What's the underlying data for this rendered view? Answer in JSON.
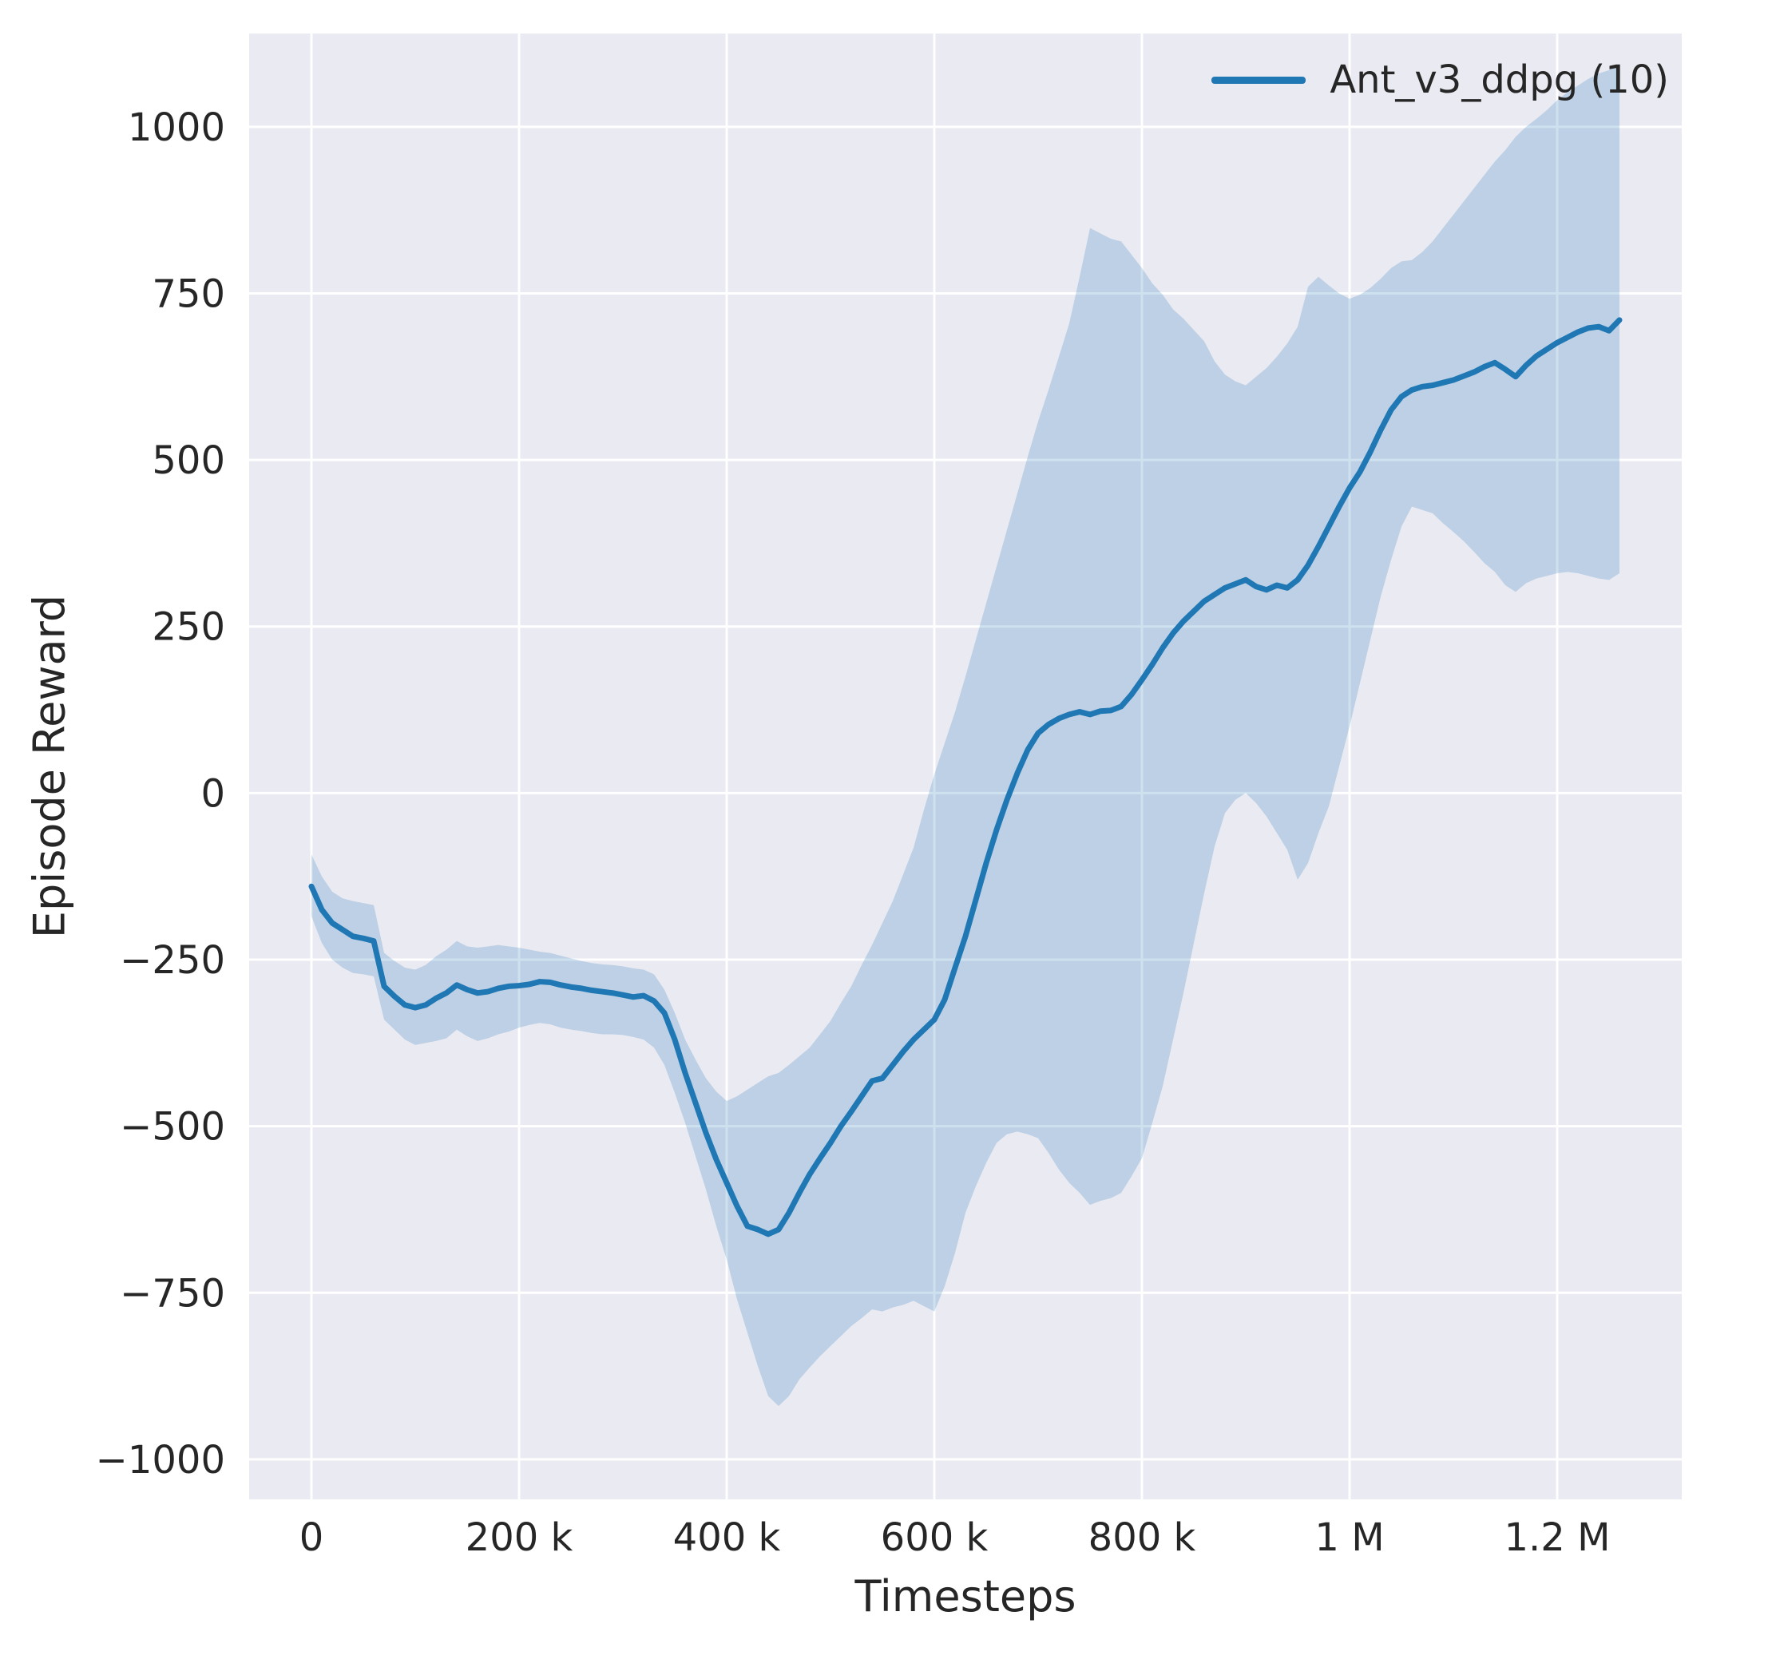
{
  "chart_data": {
    "type": "line",
    "title": "",
    "xlabel": "Timesteps",
    "ylabel": "Episode Reward",
    "legend": [
      {
        "label": "Ant_v3_ddpg (10)",
        "color": "#1f77b4"
      }
    ],
    "legend_position": "upper right",
    "grid": true,
    "xlim": [
      -60000,
      1320000
    ],
    "ylim": [
      -1060,
      1140
    ],
    "xticks": {
      "values": [
        0,
        200000,
        400000,
        600000,
        800000,
        1000000,
        1200000
      ],
      "labels": [
        "0",
        "200 k",
        "400 k",
        "600 k",
        "800 k",
        "1 M",
        "1.2 M"
      ]
    },
    "yticks": {
      "values": [
        -1000,
        -750,
        -500,
        -250,
        0,
        250,
        500,
        750,
        1000
      ],
      "labels": [
        "−1000",
        "−750",
        "−500",
        "−250",
        "0",
        "250",
        "500",
        "750",
        "1000"
      ]
    },
    "colors": {
      "line": "#1f77b4",
      "band": "rgba(31,119,180,0.22)",
      "axes_bg": "#eaeaf2",
      "grid": "#ffffff",
      "text": "#262626"
    },
    "series": [
      {
        "name": "Ant_v3_ddpg (10)",
        "x_step": 10000,
        "mean": [
          -140,
          -175,
          -195,
          -205,
          -215,
          -218,
          -222,
          -290,
          -305,
          -318,
          -322,
          -318,
          -308,
          -300,
          -288,
          -295,
          -300,
          -298,
          -293,
          -290,
          -289,
          -287,
          -283,
          -284,
          -288,
          -291,
          -293,
          -296,
          -298,
          -300,
          -303,
          -306,
          -304,
          -312,
          -330,
          -370,
          -420,
          -465,
          -510,
          -550,
          -585,
          -620,
          -650,
          -655,
          -662,
          -655,
          -630,
          -600,
          -572,
          -548,
          -525,
          -500,
          -478,
          -455,
          -432,
          -428,
          -408,
          -388,
          -370,
          -355,
          -340,
          -310,
          -262,
          -215,
          -160,
          -105,
          -55,
          -10,
          30,
          65,
          90,
          103,
          112,
          118,
          122,
          118,
          123,
          124,
          130,
          148,
          170,
          193,
          218,
          240,
          258,
          273,
          288,
          298,
          308,
          314,
          320,
          310,
          305,
          312,
          308,
          320,
          342,
          370,
          400,
          430,
          458,
          482,
          512,
          545,
          575,
          595,
          605,
          610,
          612,
          616,
          620,
          626,
          632,
          640,
          646,
          636,
          625,
          642,
          656,
          666,
          676,
          684,
          692,
          698,
          700,
          694,
          710
        ],
        "lower": [
          -185,
          -225,
          -250,
          -262,
          -270,
          -272,
          -275,
          -340,
          -355,
          -370,
          -378,
          -375,
          -372,
          -368,
          -355,
          -365,
          -372,
          -368,
          -362,
          -358,
          -352,
          -348,
          -345,
          -347,
          -352,
          -355,
          -357,
          -360,
          -362,
          -362,
          -363,
          -366,
          -370,
          -382,
          -408,
          -450,
          -495,
          -545,
          -595,
          -650,
          -700,
          -760,
          -810,
          -860,
          -905,
          -920,
          -905,
          -880,
          -862,
          -845,
          -830,
          -815,
          -800,
          -788,
          -775,
          -778,
          -772,
          -768,
          -762,
          -770,
          -778,
          -740,
          -690,
          -630,
          -590,
          -555,
          -525,
          -512,
          -508,
          -512,
          -518,
          -540,
          -565,
          -585,
          -600,
          -618,
          -612,
          -608,
          -600,
          -575,
          -548,
          -495,
          -440,
          -370,
          -300,
          -225,
          -150,
          -80,
          -30,
          -10,
          0,
          -15,
          -35,
          -60,
          -85,
          -130,
          -105,
          -60,
          -20,
          40,
          100,
          165,
          230,
          295,
          350,
          400,
          430,
          425,
          420,
          405,
          392,
          378,
          362,
          345,
          332,
          312,
          302,
          315,
          322,
          326,
          330,
          332,
          330,
          326,
          322,
          320,
          330
        ],
        "upper": [
          -92,
          -125,
          -148,
          -158,
          -162,
          -165,
          -168,
          -240,
          -252,
          -262,
          -265,
          -258,
          -245,
          -235,
          -222,
          -230,
          -232,
          -230,
          -228,
          -230,
          -232,
          -235,
          -238,
          -240,
          -244,
          -248,
          -252,
          -255,
          -257,
          -258,
          -260,
          -263,
          -265,
          -272,
          -295,
          -330,
          -370,
          -400,
          -428,
          -448,
          -462,
          -455,
          -445,
          -435,
          -425,
          -420,
          -408,
          -395,
          -382,
          -362,
          -342,
          -315,
          -290,
          -258,
          -228,
          -195,
          -162,
          -122,
          -82,
          -25,
          28,
          75,
          122,
          175,
          230,
          285,
          340,
          395,
          450,
          505,
          558,
          605,
          655,
          705,
          775,
          848,
          840,
          832,
          828,
          808,
          788,
          765,
          748,
          726,
          712,
          695,
          678,
          648,
          628,
          618,
          612,
          625,
          638,
          655,
          675,
          700,
          760,
          775,
          762,
          750,
          742,
          748,
          758,
          772,
          788,
          798,
          800,
          812,
          828,
          848,
          868,
          888,
          908,
          928,
          948,
          965,
          985,
          1000,
          1012,
          1025,
          1040,
          1052,
          1062,
          1072,
          1080,
          1085,
          1092
        ]
      }
    ]
  }
}
